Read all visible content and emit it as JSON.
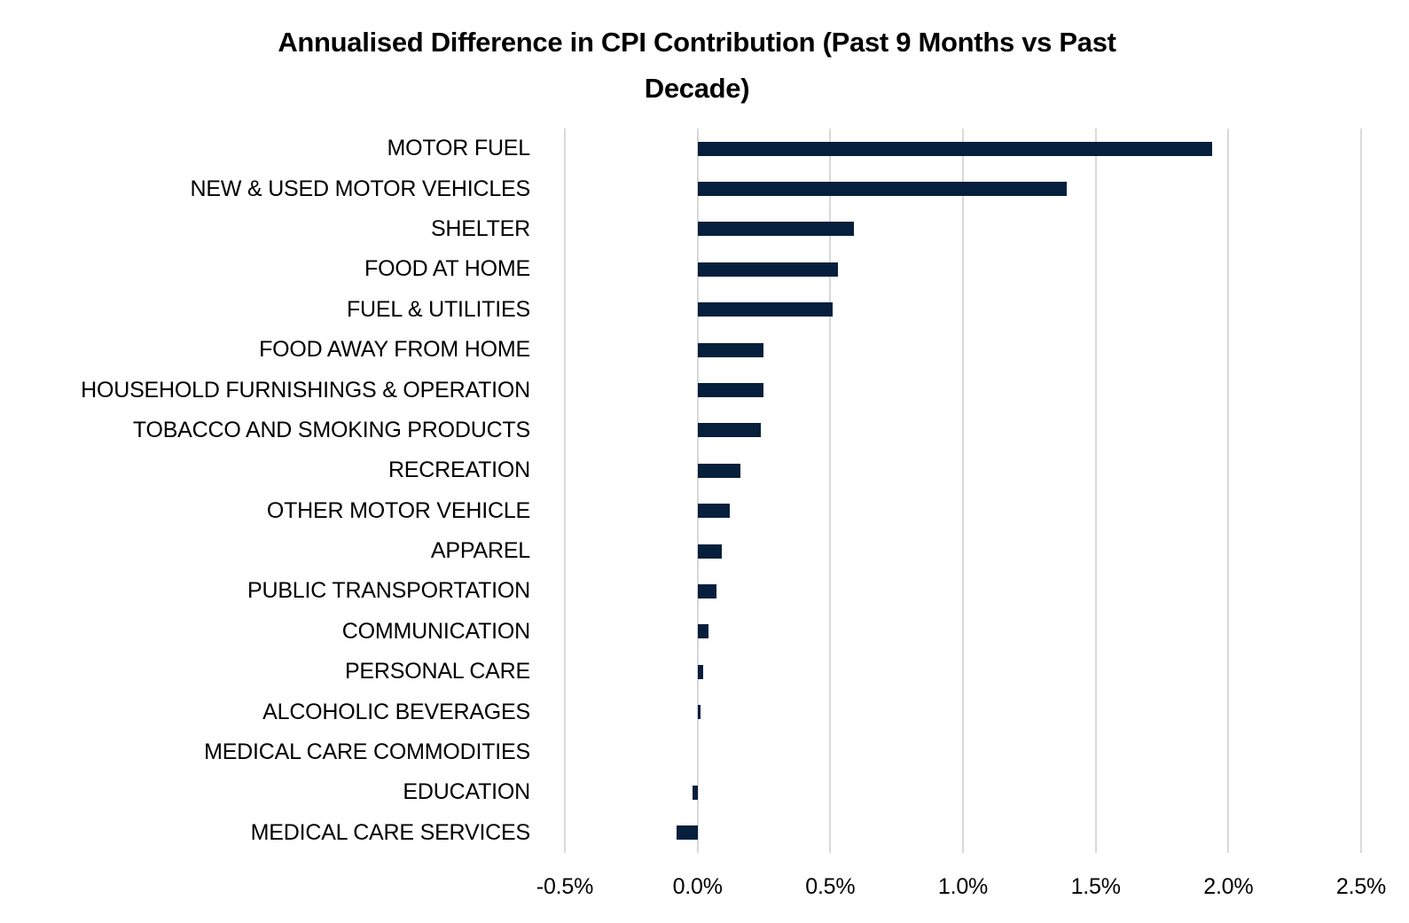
{
  "title": {
    "line1": "Annualised Difference in CPI Contribution (Past 9 Months vs Past",
    "line2": "Decade)"
  },
  "chart_data": {
    "type": "bar",
    "orientation": "horizontal",
    "title": "Annualised Difference in CPI Contribution (Past 9 Months vs Past Decade)",
    "categories": [
      "MOTOR FUEL",
      "NEW & USED MOTOR VEHICLES",
      "SHELTER",
      "FOOD AT HOME",
      "FUEL & UTILITIES",
      "FOOD AWAY FROM HOME",
      "HOUSEHOLD FURNISHINGS & OPERATION",
      "TOBACCO AND SMOKING PRODUCTS",
      "RECREATION",
      "OTHER MOTOR VEHICLE",
      "APPAREL",
      "PUBLIC TRANSPORTATION",
      "COMMUNICATION",
      "PERSONAL CARE",
      "ALCOHOLIC BEVERAGES",
      "MEDICAL CARE COMMODITIES",
      "EDUCATION",
      "MEDICAL CARE SERVICES"
    ],
    "values": [
      1.94,
      1.39,
      0.59,
      0.53,
      0.51,
      0.25,
      0.25,
      0.24,
      0.16,
      0.12,
      0.09,
      0.07,
      0.04,
      0.02,
      0.01,
      0.0,
      -0.02,
      -0.08
    ],
    "value_unit": "%",
    "xlabel": "",
    "ylabel": "",
    "xlim": [
      -0.5,
      2.5
    ],
    "x_tick_labels": [
      "-0.5%",
      "0.0%",
      "0.5%",
      "1.0%",
      "1.5%",
      "2.0%",
      "2.5%"
    ],
    "grid": "vertical-only",
    "legend": "none",
    "bar_color": "#051F3D",
    "gridline_color": "#D9D9D9",
    "text_color": "#000000"
  }
}
